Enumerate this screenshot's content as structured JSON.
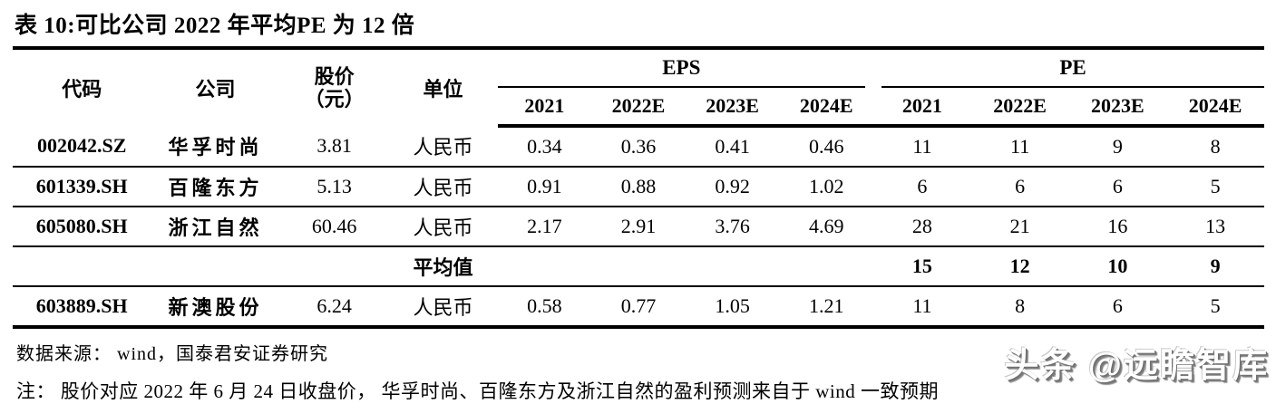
{
  "title": "表 10:可比公司 2022 年平均PE 为 12 倍",
  "table": {
    "col_headers": {
      "code": "代码",
      "company": "公司",
      "price_line1": "股价",
      "price_line2": "（元）",
      "unit": "单位",
      "eps_group": "EPS",
      "pe_group": "PE",
      "years": [
        "2021",
        "2022E",
        "2023E",
        "2024E"
      ]
    },
    "rows": [
      {
        "code": "002042.SZ",
        "company": "华孚时尚",
        "price": "3.81",
        "unit": "人民币",
        "eps": [
          "0.34",
          "0.36",
          "0.41",
          "0.46"
        ],
        "pe": [
          "11",
          "11",
          "9",
          "8"
        ]
      },
      {
        "code": "601339.SH",
        "company": "百隆东方",
        "price": "5.13",
        "unit": "人民币",
        "eps": [
          "0.91",
          "0.88",
          "0.92",
          "1.02"
        ],
        "pe": [
          "6",
          "6",
          "6",
          "5"
        ]
      },
      {
        "code": "605080.SH",
        "company": "浙江自然",
        "price": "60.46",
        "unit": "人民币",
        "eps": [
          "2.17",
          "2.91",
          "3.76",
          "4.69"
        ],
        "pe": [
          "28",
          "21",
          "16",
          "13"
        ]
      },
      {
        "code": "",
        "company": "",
        "price": "",
        "unit": "平均值",
        "eps": [
          "",
          "",
          "",
          ""
        ],
        "pe": [
          "15",
          "12",
          "10",
          "9"
        ]
      },
      {
        "code": "603889.SH",
        "company": "新澳股份",
        "price": "6.24",
        "unit": "人民币",
        "eps": [
          "0.58",
          "0.77",
          "1.05",
          "1.21"
        ],
        "pe": [
          "11",
          "8",
          "6",
          "5"
        ]
      }
    ]
  },
  "footer": {
    "source": "数据来源： wind，国泰君安证券研究",
    "note": "注： 股价对应 2022 年 6 月 24 日收盘价， 华孚时尚、百隆东方及浙江自然的盈利预测来自于 wind 一致预期"
  },
  "watermark": "头条 @远瞻智库"
}
